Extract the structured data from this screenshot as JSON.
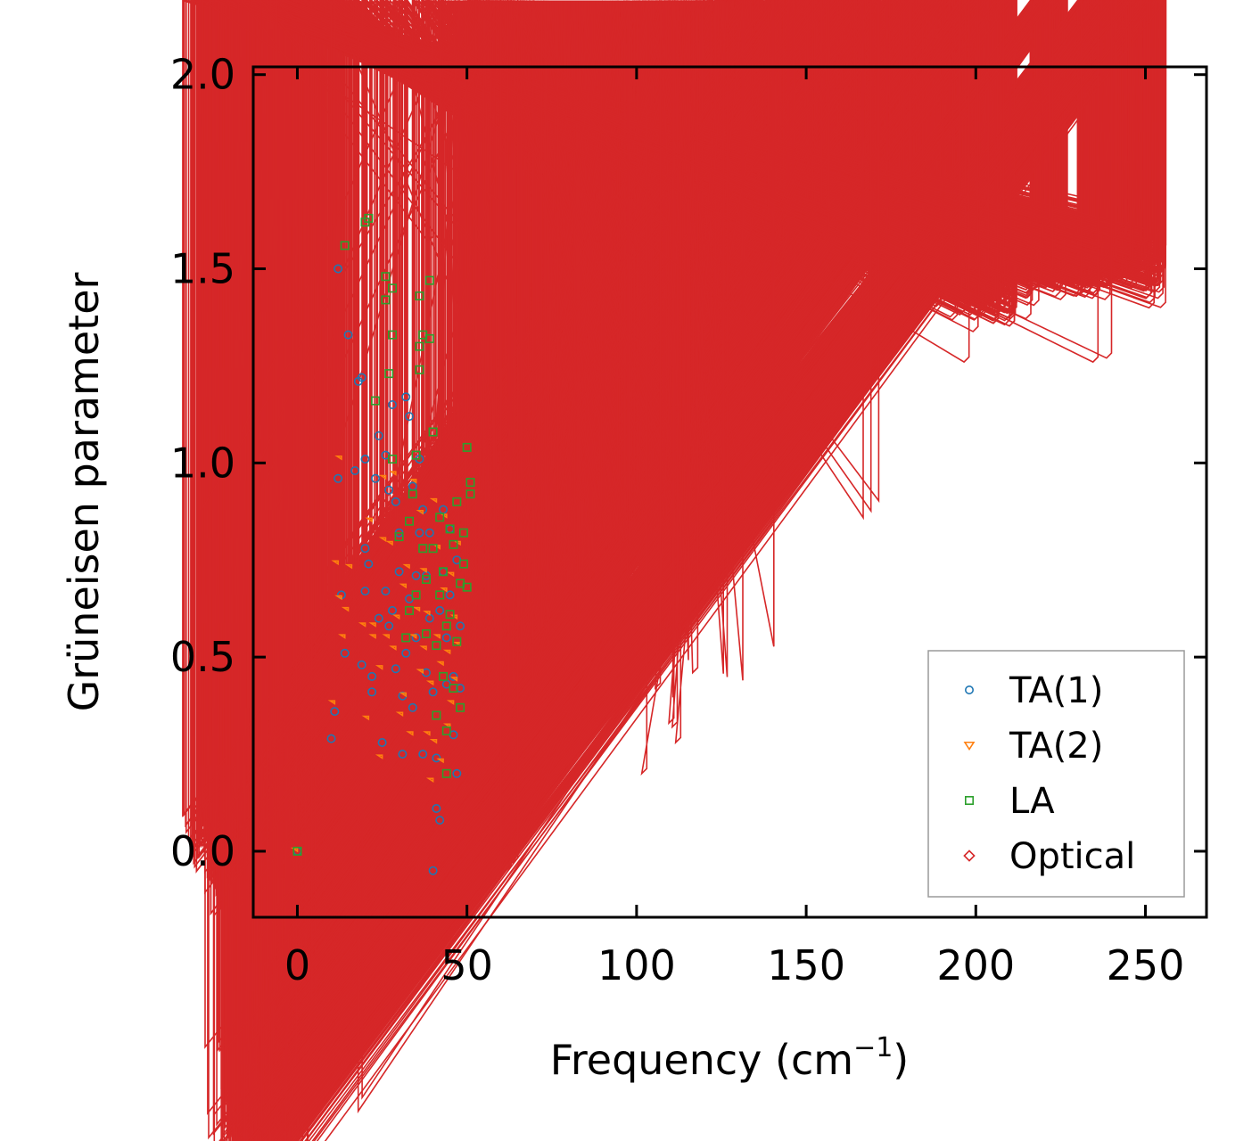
{
  "chart_data": {
    "type": "scatter",
    "title": "",
    "xlabel": "Frequency (cm",
    "xlabel_sup": "−1",
    "xlabel_close": ")",
    "ylabel": "Grüneisen parameter",
    "xlim": [
      -13,
      268
    ],
    "ylim": [
      -0.17,
      2.02
    ],
    "xticks": [
      0,
      50,
      100,
      150,
      200,
      250
    ],
    "yticks": [
      0.0,
      0.5,
      1.0,
      1.5,
      2.0
    ],
    "xtick_labels": [
      "0",
      "50",
      "100",
      "150",
      "200",
      "250"
    ],
    "ytick_labels": [
      "0.0",
      "0.5",
      "1.0",
      "1.5",
      "2.0"
    ],
    "legend_position": "lower-right",
    "series": [
      {
        "name": "TA(1)",
        "marker": "circle",
        "color": "#1f77b4",
        "points": [
          [
            0,
            0
          ],
          [
            10,
            0.29
          ],
          [
            11,
            0.36
          ],
          [
            12,
            0.96
          ],
          [
            12,
            1.5
          ],
          [
            13,
            0.66
          ],
          [
            14,
            0.51
          ],
          [
            15,
            1.33
          ],
          [
            17,
            0.98
          ],
          [
            18,
            1.21
          ],
          [
            19,
            1.22
          ],
          [
            19,
            0.48
          ],
          [
            20,
            1.01
          ],
          [
            20,
            0.78
          ],
          [
            20,
            0.67
          ],
          [
            21,
            0.74
          ],
          [
            22,
            0.41
          ],
          [
            22,
            0.45
          ],
          [
            23,
            0.96
          ],
          [
            24,
            0.6
          ],
          [
            24,
            1.07
          ],
          [
            25,
            0.28
          ],
          [
            26,
            0.67
          ],
          [
            26,
            1.02
          ],
          [
            27,
            0.58
          ],
          [
            27,
            0.93
          ],
          [
            28,
            1.15
          ],
          [
            28,
            0.62
          ],
          [
            29,
            0.47
          ],
          [
            29,
            0.9
          ],
          [
            30,
            0.82
          ],
          [
            30,
            0.72
          ],
          [
            31,
            0.4
          ],
          [
            31,
            0.25
          ],
          [
            32,
            1.17
          ],
          [
            32,
            0.51
          ],
          [
            33,
            1.12
          ],
          [
            33,
            0.65
          ],
          [
            34,
            0.94
          ],
          [
            34,
            0.37
          ],
          [
            35,
            0.71
          ],
          [
            35,
            0.55
          ],
          [
            36,
            1.01
          ],
          [
            36,
            0.82
          ],
          [
            37,
            0.88
          ],
          [
            37,
            0.25
          ],
          [
            38,
            0.71
          ],
          [
            38,
            0.46
          ],
          [
            39,
            0.6
          ],
          [
            39,
            0.82
          ],
          [
            40,
            0.41
          ],
          [
            40,
            -0.05
          ],
          [
            41,
            0.11
          ],
          [
            41,
            0.24
          ],
          [
            42,
            0.08
          ],
          [
            42,
            0.62
          ],
          [
            43,
            0.88
          ],
          [
            43,
            0.72
          ],
          [
            44,
            0.43
          ],
          [
            44,
            0.55
          ],
          [
            45,
            0.83
          ],
          [
            45,
            0.66
          ],
          [
            46,
            0.45
          ],
          [
            46,
            0.3
          ],
          [
            47,
            0.75
          ],
          [
            47,
            0.2
          ],
          [
            48,
            0.42
          ],
          [
            48,
            0.58
          ]
        ]
      },
      {
        "name": "TA(2)",
        "marker": "triangle",
        "color": "#ff7f0e",
        "points": [
          [
            0,
            0
          ],
          [
            11,
            0.38
          ],
          [
            12,
            0.74
          ],
          [
            13,
            1.01
          ],
          [
            13,
            0.65
          ],
          [
            14,
            0.55
          ],
          [
            15,
            0.62
          ],
          [
            16,
            0.73
          ],
          [
            20,
            0.58
          ],
          [
            21,
            0.34
          ],
          [
            22,
            0.85
          ],
          [
            23,
            0.58
          ],
          [
            23,
            0.55
          ],
          [
            25,
            0.24
          ],
          [
            25,
            0.47
          ],
          [
            26,
            0.8
          ],
          [
            26,
            0.96
          ],
          [
            27,
            0.55
          ],
          [
            28,
            0.79
          ],
          [
            29,
            0.52
          ],
          [
            29,
            0.97
          ],
          [
            30,
            0.6
          ],
          [
            31,
            0.35
          ],
          [
            32,
            0.68
          ],
          [
            32,
            0.4
          ],
          [
            33,
            0.73
          ],
          [
            34,
            0.3
          ],
          [
            35,
            0.55
          ],
          [
            35,
            0.95
          ],
          [
            36,
            0.62
          ],
          [
            37,
            0.46
          ],
          [
            37,
            0.87
          ],
          [
            38,
            0.52
          ],
          [
            38,
            0.72
          ],
          [
            39,
            0.61
          ],
          [
            39,
            0.3
          ],
          [
            40,
            0.18
          ],
          [
            40,
            0.43
          ],
          [
            41,
            0.9
          ],
          [
            41,
            0.28
          ],
          [
            42,
            0.55
          ],
          [
            42,
            0.78
          ],
          [
            43,
            0.23
          ],
          [
            43,
            0.48
          ],
          [
            44,
            0.67
          ],
          [
            44,
            0.86
          ],
          [
            45,
            0.32
          ],
          [
            45,
            0.51
          ],
          [
            46,
            0.71
          ],
          [
            46,
            0.38
          ],
          [
            47,
            0.6
          ],
          [
            47,
            0.44
          ],
          [
            48,
            0.53
          ],
          [
            48,
            0.79
          ]
        ]
      },
      {
        "name": "LA",
        "marker": "square",
        "color": "#2ca02c",
        "points": [
          [
            0,
            0
          ],
          [
            14,
            1.56
          ],
          [
            20,
            1.62
          ],
          [
            21,
            1.63
          ],
          [
            23,
            1.16
          ],
          [
            26,
            1.48
          ],
          [
            26,
            1.42
          ],
          [
            27,
            1.23
          ],
          [
            28,
            1.45
          ],
          [
            28,
            1.33
          ],
          [
            28,
            1.01
          ],
          [
            30,
            0.81
          ],
          [
            32,
            0.55
          ],
          [
            33,
            0.85
          ],
          [
            33,
            0.62
          ],
          [
            34,
            0.92
          ],
          [
            35,
            0.66
          ],
          [
            35,
            1.02
          ],
          [
            36,
            1.43
          ],
          [
            36,
            1.3
          ],
          [
            36,
            1.24
          ],
          [
            37,
            1.33
          ],
          [
            37,
            0.78
          ],
          [
            38,
            0.56
          ],
          [
            38,
            0.7
          ],
          [
            39,
            1.32
          ],
          [
            39,
            1.47
          ],
          [
            40,
            1.08
          ],
          [
            40,
            0.78
          ],
          [
            41,
            0.53
          ],
          [
            41,
            0.35
          ],
          [
            42,
            0.86
          ],
          [
            42,
            0.66
          ],
          [
            43,
            0.45
          ],
          [
            43,
            0.72
          ],
          [
            44,
            0.31
          ],
          [
            44,
            0.58
          ],
          [
            44,
            0.2
          ],
          [
            45,
            0.83
          ],
          [
            45,
            0.61
          ],
          [
            46,
            0.79
          ],
          [
            46,
            0.42
          ],
          [
            47,
            0.9
          ],
          [
            47,
            0.54
          ],
          [
            48,
            0.69
          ],
          [
            48,
            0.37
          ],
          [
            49,
            0.74
          ],
          [
            49,
            0.82
          ],
          [
            50,
            0.68
          ],
          [
            50,
            1.04
          ],
          [
            51,
            0.92
          ],
          [
            51,
            0.95
          ]
        ]
      },
      {
        "name": "Optical",
        "marker": "diamond",
        "color": "#d62728",
        "generator": "dense-band",
        "centerline": [
          [
            50,
            0.42
          ],
          [
            55,
            0.42
          ],
          [
            60,
            0.5
          ],
          [
            70,
            0.62
          ],
          [
            80,
            0.75
          ],
          [
            90,
            0.82
          ],
          [
            100,
            0.86
          ],
          [
            110,
            0.9
          ],
          [
            117,
            1.0
          ],
          [
            120,
            1.22
          ],
          [
            124,
            1.35
          ],
          [
            128,
            1.47
          ],
          [
            135,
            1.55
          ],
          [
            150,
            1.6
          ],
          [
            160,
            1.62
          ],
          [
            170,
            1.57
          ],
          [
            180,
            1.54
          ],
          [
            190,
            1.52
          ],
          [
            200,
            1.47
          ],
          [
            210,
            1.45
          ],
          [
            215,
            1.45
          ],
          [
            220,
            1.55
          ],
          [
            225,
            1.52
          ],
          [
            235,
            1.52
          ],
          [
            245,
            1.56
          ],
          [
            256,
            1.5
          ]
        ],
        "gaps": [
          [
            212,
            216
          ],
          [
            227,
            230
          ]
        ],
        "outliers": [
          [
            40,
            1.57
          ],
          [
            42,
            1.01
          ],
          [
            48,
            1.52
          ],
          [
            52,
            1.34
          ],
          [
            55,
            0.92
          ],
          [
            57,
            1.52
          ],
          [
            58,
            1.18
          ],
          [
            60,
            -0.07
          ],
          [
            62,
            1.67
          ],
          [
            62,
            1.48
          ],
          [
            63,
            -0.05
          ],
          [
            65,
            -0.03
          ],
          [
            72,
            1.17
          ],
          [
            103,
            0.2
          ],
          [
            118,
            0.46
          ],
          [
            113,
            0.28
          ],
          [
            111,
            0.33
          ],
          [
            112,
            0.32
          ],
          [
            107,
            0.42
          ],
          [
            140,
            1.33
          ],
          [
            198,
            1.26
          ],
          [
            236,
            1.26
          ],
          [
            240,
            1.27
          ]
        ]
      }
    ]
  }
}
